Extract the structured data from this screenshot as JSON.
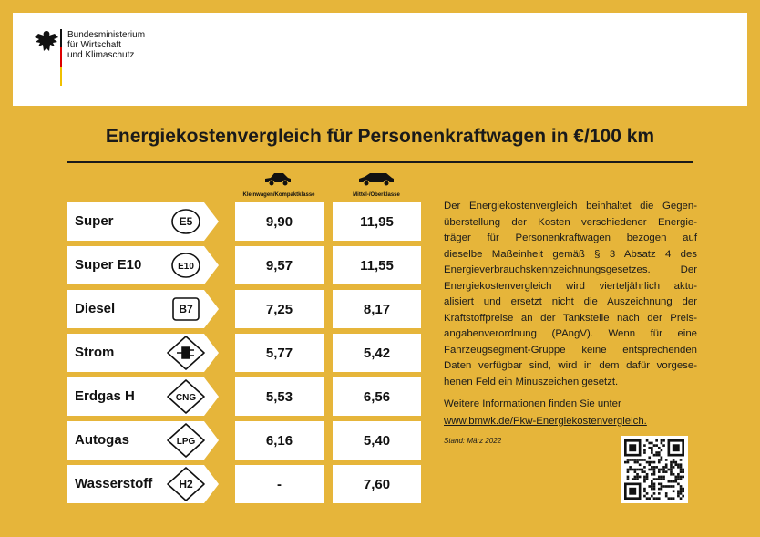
{
  "header": {
    "ministry": [
      "Bundesministerium",
      "für Wirtschaft",
      "und Klimaschutz"
    ]
  },
  "title": "Energiekostenvergleich für Personenkraftwagen in €/100 km",
  "columns": [
    "Kleinwagen/Kompaktklasse",
    "Mittel-/Oberklasse"
  ],
  "rows": [
    {
      "fuel": "Super",
      "badge": "E5",
      "values": [
        "9,90",
        "11,95"
      ]
    },
    {
      "fuel": "Super E10",
      "badge": "E10",
      "values": [
        "9,57",
        "11,55"
      ]
    },
    {
      "fuel": "Diesel",
      "badge": "B7",
      "values": [
        "7,25",
        "8,17"
      ]
    },
    {
      "fuel": "Strom",
      "badge": null,
      "values": [
        "5,77",
        "5,42"
      ]
    },
    {
      "fuel": "Erdgas H",
      "badge": "CNG",
      "values": [
        "5,53",
        "6,56"
      ]
    },
    {
      "fuel": "Autogas",
      "badge": "LPG",
      "values": [
        "6,16",
        "5,40"
      ]
    },
    {
      "fuel": "Wasserstoff",
      "badge": "H2",
      "values": [
        "-",
        "7,60"
      ]
    }
  ],
  "description": [
    "Der Energiekostenvergleich beinhaltet die Gegen-",
    "überstellung der Kosten verschiedener Energie-",
    "träger für Personenkraftwagen bezogen auf",
    "dieselbe Maßeinheit gemäß § 3 Absatz 4 des",
    "Energieverbrauchskennzeichnungsgesetzes. Der",
    "Energiekostenvergleich wird vierteljährlich aktu-",
    "alisiert und ersetzt nicht die Auszeichnung der",
    "Kraftstoffpreise an der Tankstelle nach der Preis-",
    "angabenverordnung (PAngV). Wenn für eine",
    "Fahrzeugsegment-Gruppe keine entsprechenden",
    "Daten verfügbar sind, wird in dem dafür vorgese-",
    "henen Feld ein Minuszeichen gesetzt."
  ],
  "more_info": "Weitere Informationen finden Sie unter",
  "link": "www.bmwk.de/Pkw-Energiekostenvergleich.",
  "date": "Stand: März 2022"
}
